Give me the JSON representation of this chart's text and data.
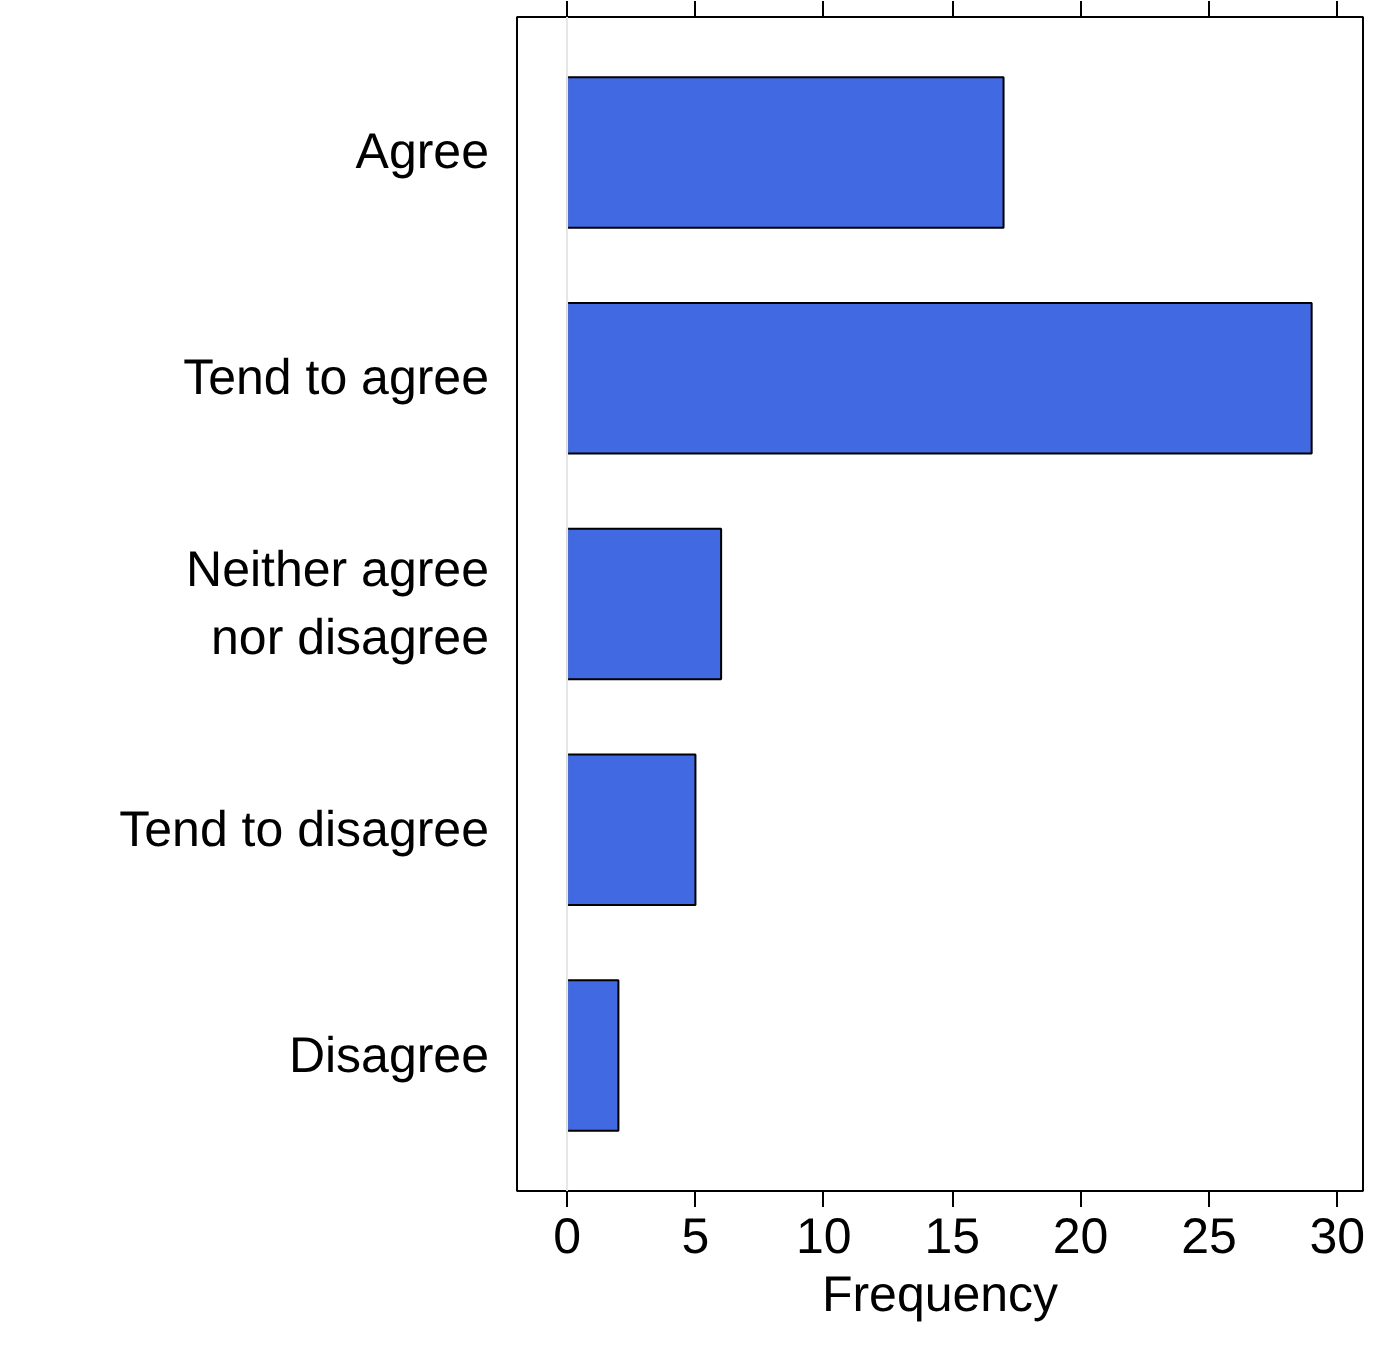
{
  "chart_data": {
    "type": "bar",
    "orientation": "horizontal",
    "xlabel": "Frequency",
    "categories": [
      "Agree",
      "Tend to agree",
      "Neither agree nor disagree",
      "Tend to disagree",
      "Disagree"
    ],
    "values": [
      17,
      29,
      6,
      5,
      2
    ],
    "color": "#4169e1",
    "xlim": [
      -1.95,
      31
    ],
    "xticks": [
      0,
      5,
      10,
      15,
      20,
      25,
      30
    ],
    "ref_lines": [
      {
        "axis": "x",
        "value": 0,
        "label": null,
        "color": "#e6e6e6"
      }
    ],
    "grid": false
  }
}
